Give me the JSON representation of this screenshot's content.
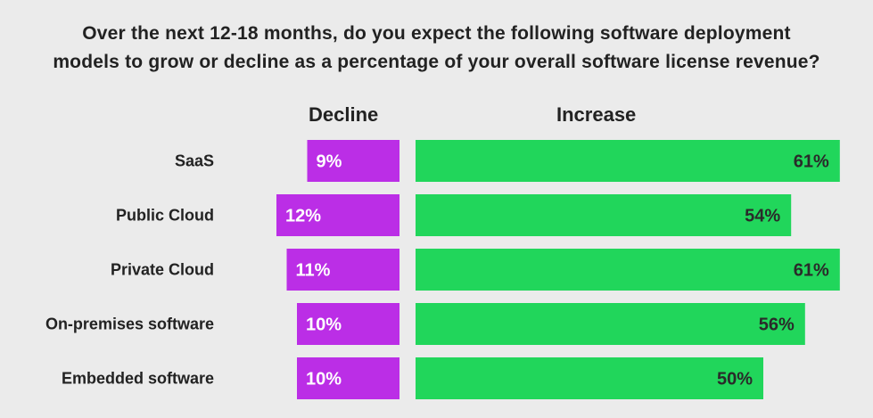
{
  "title_lines": [
    "Over the next 12-18 months, do you expect the following software deployment",
    "models to grow or decline as a percentage of your overall software license revenue?"
  ],
  "headers": {
    "decline": "Decline",
    "increase": "Increase"
  },
  "colors": {
    "decline": "#bb2ee6",
    "increase": "#21d65b",
    "background": "#ebebeb",
    "decline_text": "#ffffff",
    "increase_text": "#2a2a2a"
  },
  "chart_data": {
    "type": "bar",
    "orientation": "horizontal-diverging",
    "categories": [
      "SaaS",
      "Public Cloud",
      "Private Cloud",
      "On-premises software",
      "Embedded software"
    ],
    "series": [
      {
        "name": "Decline",
        "values": [
          9,
          12,
          11,
          10,
          10
        ],
        "labels": [
          "9%",
          "12%",
          "11%",
          "10%",
          "10%"
        ]
      },
      {
        "name": "Increase",
        "values": [
          61,
          54,
          61,
          56,
          50
        ],
        "labels": [
          "61%",
          "54%",
          "61%",
          "56%",
          "50%"
        ]
      }
    ],
    "grid": false,
    "legend": "column headers above bars"
  }
}
